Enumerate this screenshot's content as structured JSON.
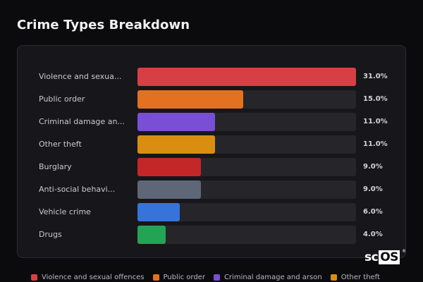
{
  "title": "Crime Types Breakdown",
  "watermark": {
    "prefix": "sc",
    "box": "OS",
    "mark": "®"
  },
  "chart_data": {
    "type": "bar",
    "orientation": "horizontal",
    "categories": [
      "Violence and sexua...",
      "Public order",
      "Criminal damage an...",
      "Other theft",
      "Burglary",
      "Anti-social behavi...",
      "Vehicle crime",
      "Drugs"
    ],
    "values": [
      31.0,
      15.0,
      11.0,
      11.0,
      9.0,
      9.0,
      6.0,
      4.0
    ],
    "value_labels": [
      "31.0%",
      "15.0%",
      "11.0%",
      "11.0%",
      "9.0%",
      "9.0%",
      "6.0%",
      "4.0%"
    ],
    "colors": [
      "#d63f44",
      "#e4711f",
      "#7a4fd6",
      "#d98e12",
      "#c42728",
      "#5d6778",
      "#3673db",
      "#22a454"
    ],
    "xlim": [
      0,
      31.0
    ],
    "title": "Crime Types Breakdown"
  },
  "legend": [
    {
      "label": "Violence and sexual offences",
      "color": "#d63f44"
    },
    {
      "label": "Public order",
      "color": "#e4711f"
    },
    {
      "label": "Criminal damage and arson",
      "color": "#7a4fd6"
    },
    {
      "label": "Other theft",
      "color": "#d98e12"
    }
  ]
}
